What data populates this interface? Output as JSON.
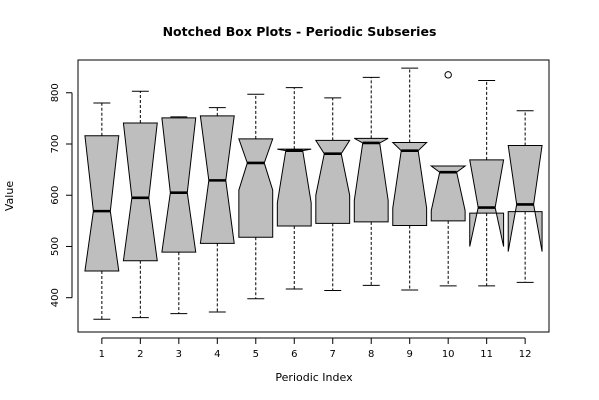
{
  "chart_data": {
    "type": "boxplot",
    "notched": true,
    "title": "Notched Box Plots - Periodic Subseries",
    "xlabel": "Periodic Index",
    "ylabel": "Value",
    "ylim": [
      335,
      862
    ],
    "yticks": [
      400,
      500,
      600,
      700,
      800
    ],
    "categories": [
      "1",
      "2",
      "3",
      "4",
      "5",
      "6",
      "7",
      "8",
      "9",
      "10",
      "11",
      "12"
    ],
    "boxes": [
      {
        "label": "1",
        "whisker_low": 358,
        "q1": 452,
        "median": 569,
        "q3": 716,
        "whisker_high": 780,
        "notch_low": 452,
        "notch_high": 716,
        "outliers": []
      },
      {
        "label": "2",
        "whisker_low": 361,
        "q1": 472,
        "median": 595,
        "q3": 741,
        "whisker_high": 803,
        "notch_low": 472,
        "notch_high": 741,
        "outliers": []
      },
      {
        "label": "3",
        "whisker_low": 369,
        "q1": 489,
        "median": 605,
        "q3": 751,
        "whisker_high": 753,
        "notch_low": 489,
        "notch_high": 751,
        "outliers": []
      },
      {
        "label": "4",
        "whisker_low": 372,
        "q1": 506,
        "median": 629,
        "q3": 755,
        "whisker_high": 771,
        "notch_low": 506,
        "notch_high": 755,
        "outliers": []
      },
      {
        "label": "5",
        "whisker_low": 398,
        "q1": 518,
        "median": 663,
        "q3": 710,
        "whisker_high": 797,
        "notch_low": 610,
        "notch_high": 710,
        "outliers": []
      },
      {
        "label": "6",
        "whisker_low": 417,
        "q1": 540,
        "median": 687,
        "q3": 690,
        "whisker_high": 810,
        "notch_low": 585,
        "notch_high": 690,
        "outliers": []
      },
      {
        "label": "7",
        "whisker_low": 414,
        "q1": 545,
        "median": 681,
        "q3": 707,
        "whisker_high": 790,
        "notch_low": 600,
        "notch_high": 707,
        "outliers": []
      },
      {
        "label": "8",
        "whisker_low": 424,
        "q1": 548,
        "median": 702,
        "q3": 711,
        "whisker_high": 830,
        "notch_low": 590,
        "notch_high": 711,
        "outliers": []
      },
      {
        "label": "9",
        "whisker_low": 415,
        "q1": 541,
        "median": 687,
        "q3": 703,
        "whisker_high": 848,
        "notch_low": 575,
        "notch_high": 703,
        "outliers": []
      },
      {
        "label": "10",
        "whisker_low": 423,
        "q1": 550,
        "median": 645,
        "q3": 657,
        "whisker_high": 657,
        "notch_low": 570,
        "notch_high": 657,
        "outliers": [
          835
        ]
      },
      {
        "label": "11",
        "whisker_low": 423,
        "q1": 565,
        "median": 576,
        "q3": 669,
        "whisker_high": 824,
        "notch_low": 500,
        "notch_high": 669,
        "outliers": []
      },
      {
        "label": "12",
        "whisker_low": 430,
        "q1": 568,
        "median": 582,
        "q3": 697,
        "whisker_high": 765,
        "notch_low": 490,
        "notch_high": 697,
        "outliers": []
      }
    ],
    "box_fill": "#bebebe",
    "stroke": "#000000"
  }
}
